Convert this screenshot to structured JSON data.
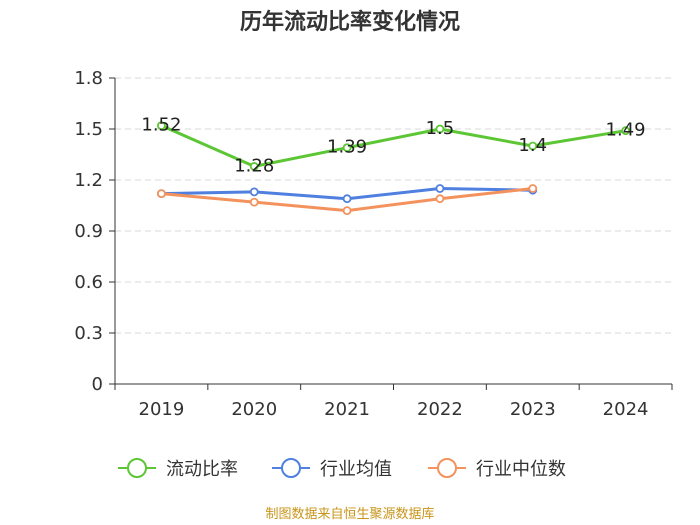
{
  "chart_data": {
    "type": "line",
    "title": "历年流动比率变化情况",
    "categories": [
      "2019",
      "2020",
      "2021",
      "2022",
      "2023",
      "2024"
    ],
    "ylim": [
      0,
      1.8
    ],
    "yticks": [
      "0",
      "0.3",
      "0.6",
      "0.9",
      "1.2",
      "1.5",
      "1.8"
    ],
    "grid": true,
    "legend_position": "bottom",
    "series": [
      {
        "name": "流动比率",
        "color": "#5dc634",
        "values": [
          1.52,
          1.28,
          1.39,
          1.5,
          1.4,
          1.49
        ],
        "labels": [
          "1.52",
          "1.28",
          "1.39",
          "1.5",
          "1.4",
          "1.49"
        ],
        "show_labels": true
      },
      {
        "name": "行业均值",
        "color": "#4f80e0",
        "values": [
          1.12,
          1.13,
          1.09,
          1.15,
          1.14,
          null
        ],
        "show_labels": false
      },
      {
        "name": "行业中位数",
        "color": "#f4925d",
        "values": [
          1.12,
          1.07,
          1.02,
          1.09,
          1.15,
          null
        ],
        "show_labels": false
      }
    ],
    "source": "制图数据来自恒生聚源数据库"
  }
}
